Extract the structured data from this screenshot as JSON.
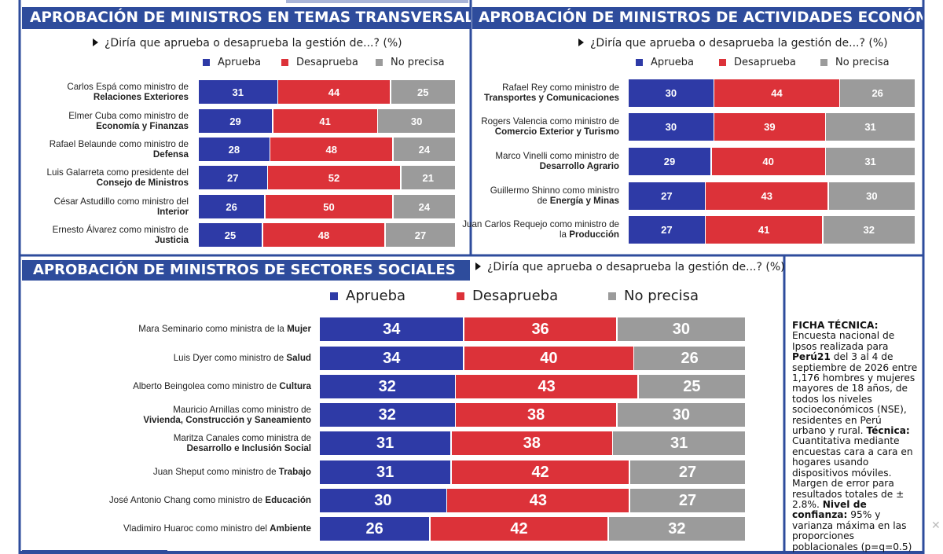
{
  "colors": {
    "approve": "#2e3aa6",
    "disapprove": "#dc3239",
    "unsure": "#9b9b9b",
    "header_bg": "#2e4c9c",
    "frame": "#2e4c9c"
  },
  "legend_labels": [
    "Aprueba",
    "Desaprueba",
    "No precisa"
  ],
  "question": "¿Diría que aprueba o desaprueba la gestión de...? (%)",
  "chart_data": [
    {
      "type": "bar",
      "stacked": true,
      "orientation": "horizontal",
      "title": "APROBACIÓN DE MINISTROS EN TEMAS TRANSVERSALES",
      "subtitle": "¿Diría que aprueba o desaprueba la gestión de...? (%)",
      "categories": [
        {
          "pre": "Carlos Espá como ministro de",
          "bold": "Relaciones Exteriores"
        },
        {
          "pre": "Elmer Cuba como ministro de",
          "bold": "Economía y Finanzas"
        },
        {
          "pre": "Rafael Belaunde como ministro de",
          "bold": "Defensa"
        },
        {
          "pre": "Luis Galarreta como presidente del",
          "bold": "Consejo de Ministros"
        },
        {
          "pre": "César Astudillo como ministro del",
          "bold": "Interior"
        },
        {
          "pre": "Ernesto Álvarez como ministro de",
          "bold": "Justicia"
        }
      ],
      "series": [
        {
          "name": "Aprueba",
          "values": [
            31,
            29,
            28,
            27,
            26,
            25
          ]
        },
        {
          "name": "Desaprueba",
          "values": [
            44,
            41,
            48,
            52,
            50,
            48
          ]
        },
        {
          "name": "No precisa",
          "values": [
            25,
            30,
            24,
            21,
            24,
            27
          ]
        }
      ],
      "xlim": [
        0,
        100
      ],
      "legend": "top"
    },
    {
      "type": "bar",
      "stacked": true,
      "orientation": "horizontal",
      "title": "APROBACIÓN DE MINISTROS DE ACTIVIDADES ECONÓMICAS",
      "subtitle": "¿Diría que aprueba o desaprueba la gestión de...? (%)",
      "categories": [
        {
          "pre": "Rafael Rey como ministro de",
          "bold": "Transportes y Comunicaciones"
        },
        {
          "pre": "Rogers Valencia como ministro de",
          "bold": "Comercio Exterior y Turismo"
        },
        {
          "pre": "Marco Vinelli como ministro de",
          "bold": "Desarrollo Agrario"
        },
        {
          "pre": "Guillermo Shinno como ministro de",
          "bold": "Energía y Minas",
          "inline": true
        },
        {
          "pre": "Juan Carlos Requejo como ministro de la",
          "bold": "Producción",
          "inline": true
        }
      ],
      "series": [
        {
          "name": "Aprueba",
          "values": [
            30,
            30,
            29,
            27,
            27
          ]
        },
        {
          "name": "Desaprueba",
          "values": [
            44,
            39,
            40,
            43,
            41
          ]
        },
        {
          "name": "No precisa",
          "values": [
            26,
            31,
            31,
            30,
            32
          ]
        }
      ],
      "xlim": [
        0,
        100
      ],
      "legend": "top"
    },
    {
      "type": "bar",
      "stacked": true,
      "orientation": "horizontal",
      "title": "APROBACIÓN DE MINISTROS DE SECTORES SOCIALES",
      "subtitle": "¿Diría que aprueba o desaprueba la gestión de...? (%)",
      "categories": [
        {
          "pre": "Mara Seminario como ministra de la",
          "bold": "Mujer"
        },
        {
          "pre": "Luis Dyer como ministro de",
          "bold": "Salud"
        },
        {
          "pre": "Alberto Beingolea como ministro de",
          "bold": "Cultura"
        },
        {
          "pre": "Mauricio Arnillas como ministro de",
          "bold": "Vivienda, Construcción y Saneamiento",
          "wrap": true
        },
        {
          "pre": "Maritza Canales como ministra de",
          "bold": "Desarrollo e Inclusión Social",
          "wrap": true
        },
        {
          "pre": "Juan Sheput como ministro de",
          "bold": "Trabajo"
        },
        {
          "pre": "José Antonio Chang como ministro de",
          "bold": "Educación"
        },
        {
          "pre": "Vladimiro Huaroc como ministro del",
          "bold": "Ambiente"
        }
      ],
      "series": [
        {
          "name": "Aprueba",
          "values": [
            34,
            34,
            32,
            32,
            31,
            31,
            30,
            26
          ]
        },
        {
          "name": "Desaprueba",
          "values": [
            36,
            40,
            43,
            38,
            38,
            42,
            43,
            42
          ]
        },
        {
          "name": "No precisa",
          "values": [
            30,
            26,
            25,
            30,
            31,
            27,
            27,
            32
          ]
        }
      ],
      "xlim": [
        0,
        100
      ],
      "legend": "top"
    }
  ],
  "ficha": [
    {
      "text": "FICHA TÉCNICA:",
      "bold": true
    },
    {
      "text": " Encuesta nacional de Ipsos realizada para "
    },
    {
      "text": "Perú21",
      "bold": true
    },
    {
      "text": " del 3 al 4 de septiembre de 2026 entre 1,176 hombres y mujeres mayores de 18 años, de todos los niveles socioeconómicos (NSE), residentes en Perú urbano y rural. "
    },
    {
      "text": "Técnica:",
      "bold": true
    },
    {
      "text": " Cuantitativa mediante encuestas cara a cara en hogares usando dispositivos móviles. Margen de error para resultados totales de ± 2.8%. "
    },
    {
      "text": "Nivel de confianza:",
      "bold": true
    },
    {
      "text": " 95% y varianza máxima en las proporciones poblacionales (p=q=0.5)"
    }
  ]
}
